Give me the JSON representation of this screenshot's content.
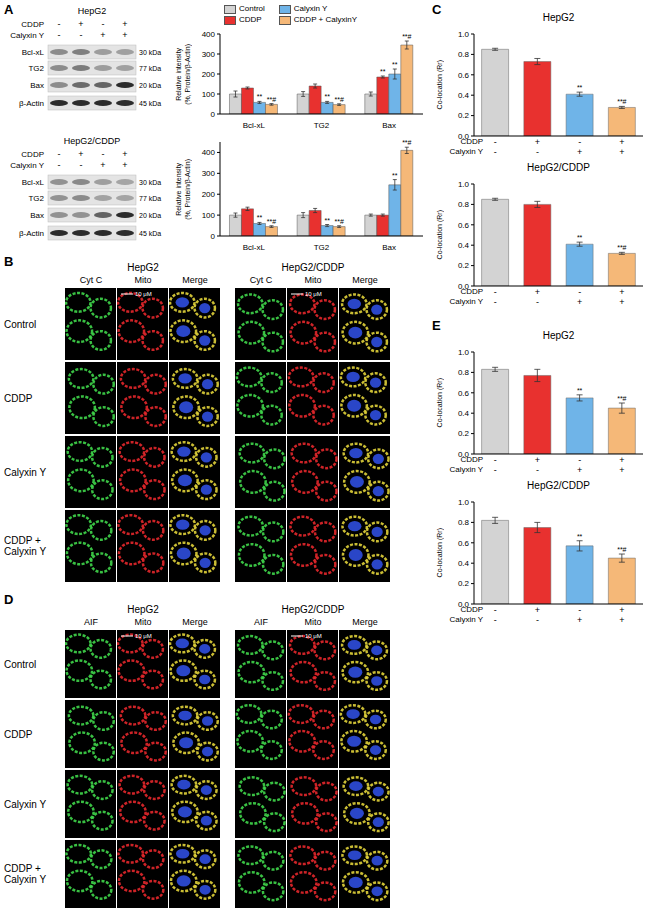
{
  "panel_letters": [
    "A",
    "B",
    "C",
    "D",
    "E"
  ],
  "chart_data": [
    {
      "type": "bar",
      "legend": "top",
      "ylabel": [
        "Relative intensity",
        "(%, Protein/β-Actin)"
      ],
      "categories": [
        "Bcl-xL",
        "TG2",
        "Bax"
      ],
      "ylim": [
        0,
        400
      ],
      "yticks": [
        0,
        100,
        200,
        300,
        400
      ],
      "series": [
        {
          "name": "Control",
          "color": "#d3d3d3",
          "values": [
            100,
            100,
            100
          ],
          "errors": [
            15,
            12,
            10
          ],
          "annotations": [
            null,
            null,
            null
          ]
        },
        {
          "name": "CDDP",
          "color": "#e8312f",
          "values": [
            130,
            140,
            185
          ],
          "errors": [
            5,
            10,
            5
          ],
          "annotations": [
            null,
            null,
            "**"
          ]
        },
        {
          "name": "Calyxin Y",
          "color": "#6fb4e8",
          "values": [
            58,
            58,
            200
          ],
          "errors": [
            5,
            5,
            25
          ],
          "annotations": [
            "**",
            "**",
            "**"
          ]
        },
        {
          "name": "CDDP + CalyxinY",
          "color": "#f5b878",
          "values": [
            48,
            47,
            345
          ],
          "errors": [
            4,
            4,
            20
          ],
          "annotations": [
            "**#",
            "**#",
            "**#"
          ]
        }
      ]
    },
    {
      "type": "bar",
      "ylabel": [
        "Relative intensity",
        "(%, Protein/β-Actin)"
      ],
      "categories": [
        "Bcl-xL",
        "TG2",
        "Bax"
      ],
      "ylim": [
        0,
        450
      ],
      "yticks": [
        0,
        100,
        200,
        300,
        400
      ],
      "series": [
        {
          "name": "Control",
          "color": "#d3d3d3",
          "values": [
            100,
            100,
            100
          ],
          "errors": [
            10,
            12,
            5
          ],
          "annotations": [
            null,
            null,
            null
          ]
        },
        {
          "name": "CDDP",
          "color": "#e8312f",
          "values": [
            130,
            122,
            100
          ],
          "errors": [
            8,
            10,
            5
          ],
          "annotations": [
            null,
            null,
            null
          ]
        },
        {
          "name": "Calyxin Y",
          "color": "#6fb4e8",
          "values": [
            60,
            50,
            245
          ],
          "errors": [
            5,
            5,
            25
          ],
          "annotations": [
            "**",
            "**",
            "**"
          ]
        },
        {
          "name": "CDDP + CalyxinY",
          "color": "#f5b878",
          "values": [
            45,
            45,
            410
          ],
          "errors": [
            4,
            4,
            15
          ],
          "annotations": [
            "**#",
            "**#",
            "**#"
          ]
        }
      ]
    },
    {
      "type": "bar",
      "title": "HepG2",
      "ylabel": "Co-location (Rr)",
      "values": [
        0.85,
        0.73,
        0.41,
        0.28
      ],
      "errors": [
        0.01,
        0.03,
        0.02,
        0.01
      ],
      "annotations": [
        null,
        null,
        "**",
        "**#"
      ],
      "colors": [
        "#d3d3d3",
        "#e8312f",
        "#6fb4e8",
        "#f5b878"
      ],
      "ylim": [
        0,
        1.0
      ],
      "yticks": [
        {
          "value": 0,
          "label": "0.0"
        },
        0.2,
        0.4,
        0.6,
        0.8,
        {
          "value": 1.0,
          "label": "1.0"
        }
      ],
      "x_table": {
        "rows": [
          "CDDP",
          "Calyxin Y"
        ],
        "cells": [
          [
            "-",
            "+",
            "-",
            "+"
          ],
          [
            "-",
            "-",
            "+",
            "+"
          ]
        ]
      }
    },
    {
      "type": "bar",
      "title": "HepG2/CDDP",
      "ylabel": "Co-location (Rr)",
      "values": [
        0.85,
        0.8,
        0.41,
        0.32
      ],
      "errors": [
        0.01,
        0.03,
        0.02,
        0.01
      ],
      "annotations": [
        null,
        null,
        "**",
        "**#"
      ],
      "colors": [
        "#d3d3d3",
        "#e8312f",
        "#6fb4e8",
        "#f5b878"
      ],
      "ylim": [
        0,
        1.0
      ],
      "yticks": [
        {
          "value": 0,
          "label": "0.0"
        },
        0.2,
        0.4,
        0.6,
        0.8,
        {
          "value": 1.0,
          "label": "1.0"
        }
      ],
      "x_table": {
        "rows": [
          "CDDP",
          "Calyxin Y"
        ],
        "cells": [
          [
            "-",
            "+",
            "-",
            "+"
          ],
          [
            "-",
            "-",
            "+",
            "+"
          ]
        ]
      }
    },
    {
      "type": "bar",
      "title": "HepG2",
      "ylabel": "Co-location (Rr)",
      "values": [
        0.83,
        0.77,
        0.55,
        0.45
      ],
      "errors": [
        0.02,
        0.06,
        0.03,
        0.05
      ],
      "annotations": [
        null,
        null,
        "**",
        "**#"
      ],
      "colors": [
        "#d3d3d3",
        "#e8312f",
        "#6fb4e8",
        "#f5b878"
      ],
      "ylim": [
        0,
        1.0
      ],
      "yticks": [
        {
          "value": 0,
          "label": "0.0"
        },
        0.2,
        0.4,
        0.6,
        0.8,
        {
          "value": 1.0,
          "label": "1.0"
        }
      ],
      "x_table": {
        "rows": [
          "CDDP",
          "Calyxin Y"
        ],
        "cells": [
          [
            "-",
            "+",
            "-",
            "+"
          ],
          [
            "-",
            "-",
            "+",
            "+"
          ]
        ]
      }
    },
    {
      "type": "bar",
      "title": "HepG2/CDDP",
      "ylabel": "Co-location (Rr)",
      "values": [
        0.82,
        0.75,
        0.57,
        0.45
      ],
      "errors": [
        0.03,
        0.05,
        0.05,
        0.04
      ],
      "annotations": [
        null,
        null,
        "**",
        "**#"
      ],
      "colors": [
        "#d3d3d3",
        "#e8312f",
        "#6fb4e8",
        "#f5b878"
      ],
      "ylim": [
        0,
        1.0
      ],
      "yticks": [
        {
          "value": 0,
          "label": "0.0"
        },
        0.2,
        0.4,
        0.6,
        0.8,
        {
          "value": 1.0,
          "label": "1.0"
        }
      ],
      "x_table": {
        "rows": [
          "CDDP",
          "Calyxin Y"
        ],
        "cells": [
          [
            "-",
            "+",
            "-",
            "+"
          ],
          [
            "-",
            "-",
            "+",
            "+"
          ]
        ]
      }
    }
  ],
  "blots": [
    {
      "title": "HepG2",
      "treatments": [
        {
          "name": "CDDP",
          "marks": [
            "-",
            "+",
            "-",
            "+"
          ]
        },
        {
          "name": "Calyxin Y",
          "marks": [
            "-",
            "-",
            "+",
            "+"
          ]
        }
      ],
      "bands": [
        {
          "name": "Bcl-xL",
          "size": "30 kDa"
        },
        {
          "name": "TG2",
          "size": "77 kDa"
        },
        {
          "name": "Bax",
          "size": "20 kDa"
        },
        {
          "name": "β-Actin",
          "size": "45 kDa"
        }
      ]
    },
    {
      "title": "HepG2/CDDP",
      "treatments": [
        {
          "name": "CDDP",
          "marks": [
            "-",
            "+",
            "-",
            "+"
          ]
        },
        {
          "name": "Calyxin Y",
          "marks": [
            "-",
            "-",
            "+",
            "+"
          ]
        }
      ],
      "bands": [
        {
          "name": "Bcl-xL",
          "size": "30 kDa"
        },
        {
          "name": "TG2",
          "size": "77 kDa"
        },
        {
          "name": "Bax",
          "size": "20 kDa"
        },
        {
          "name": "β-Actin",
          "size": "45 kDa"
        }
      ]
    }
  ],
  "images": [
    {
      "channels": [
        "Cyt C",
        "Mito",
        "Merge"
      ],
      "rows": [
        "Control",
        "CDDP",
        "Calyxin Y",
        "CDDP + Calyxin Y"
      ],
      "groups": [
        {
          "title": "HepG2",
          "scale_bar": "10 μM"
        },
        {
          "title": "HepG2/CDDP",
          "scale_bar": "10 μM"
        }
      ]
    },
    {
      "channels": [
        "AIF",
        "Mito",
        "Merge"
      ],
      "rows": [
        "Control",
        "CDDP",
        "Calyxin Y",
        "CDDP + Calyxin Y"
      ],
      "groups": [
        {
          "title": "HepG2",
          "scale_bar": "10 μM"
        },
        {
          "title": "HepG2/CDDP",
          "scale_bar": "10 μM"
        }
      ]
    }
  ]
}
